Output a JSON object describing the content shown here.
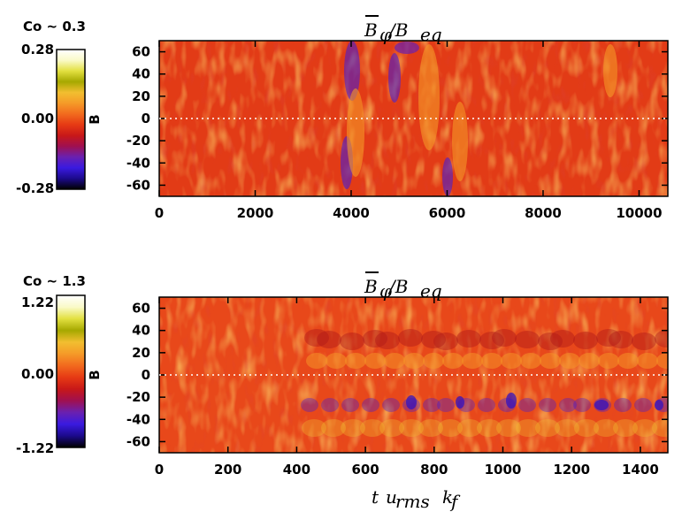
{
  "chart_data": [
    {
      "type": "heatmap",
      "title": "B̄_φ/B_eq",
      "title_main": "B",
      "title_sub": "φ",
      "title_div": "/B",
      "title_sub2": "eq",
      "colorbar_caption": "Co ~ 0.3",
      "colorbar_top": "0.28",
      "colorbar_mid": "0.00",
      "colorbar_bottom": "-0.28",
      "colorbar_axis_label": "B",
      "xlim": [
        0,
        10600
      ],
      "ylim": [
        -70,
        70
      ],
      "x_ticks": [
        0,
        2000,
        4000,
        6000,
        8000,
        10000
      ],
      "x_tick_labels": [
        "0",
        "2000",
        "4000",
        "6000",
        "8000",
        "10000"
      ],
      "y_ticks": [
        60,
        40,
        20,
        0,
        -20,
        -40,
        -60
      ],
      "y_tick_labels": [
        "60",
        "40",
        "20",
        "0",
        "-20",
        "-40",
        "-60"
      ],
      "equator_line": 0,
      "xlabel": ""
    },
    {
      "type": "heatmap",
      "title": "B̄_φ/B_eq",
      "title_main": "B",
      "title_sub": "φ",
      "title_div": "/B",
      "title_sub2": "eq",
      "colorbar_caption": "Co ~ 1.3",
      "colorbar_top": "1.22",
      "colorbar_mid": "0.00",
      "colorbar_bottom": "-1.22",
      "colorbar_axis_label": "B",
      "xlim": [
        0,
        1480
      ],
      "ylim": [
        -70,
        70
      ],
      "x_ticks": [
        0,
        200,
        400,
        600,
        800,
        1000,
        1200,
        1400
      ],
      "x_tick_labels": [
        "0",
        "200",
        "400",
        "600",
        "800",
        "1000",
        "1200",
        "1400"
      ],
      "y_ticks": [
        60,
        40,
        20,
        0,
        -20,
        -40,
        -60
      ],
      "y_tick_labels": [
        "60",
        "40",
        "20",
        "0",
        "-20",
        "-40",
        "-60"
      ],
      "equator_line": 0,
      "xlabel": "t u_rms k_f"
    }
  ],
  "colormap": [
    "#000000",
    "#1c0a8c",
    "#3a1ae0",
    "#6a20b0",
    "#a01050",
    "#c81818",
    "#e63a14",
    "#f26a1e",
    "#f59a28",
    "#f2be30",
    "#a6a800",
    "#e2e040",
    "#fafac8",
    "#ffffff"
  ],
  "xlabel_parts": {
    "t": "t",
    "u": "u",
    "u_sub": "rms",
    "k": "k",
    "k_sub": "f"
  }
}
